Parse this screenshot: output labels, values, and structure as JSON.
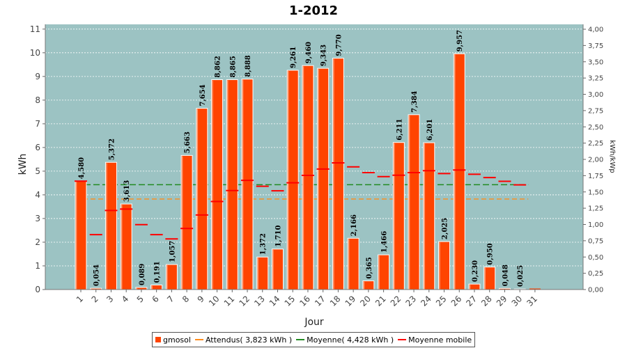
{
  "chart_data": {
    "type": "bar",
    "title": "1-2012",
    "xlabel": "Jour",
    "ylabel": "kWh",
    "y2label": "kWh/kWp",
    "ylim": [
      0,
      11.2
    ],
    "yticks": [
      "0",
      "1",
      "2",
      "3",
      "4",
      "5",
      "6",
      "7",
      "8",
      "9",
      "10",
      "11"
    ],
    "y2ticks": [
      "0,00",
      "0,25",
      "0,50",
      "0,75",
      "1,00",
      "1,25",
      "1,50",
      "1,75",
      "2,00",
      "2,25",
      "2,50",
      "2,75",
      "3,00",
      "3,25",
      "3,50",
      "3,75",
      "4,00"
    ],
    "grid": true,
    "legend_position": "bottom",
    "categories": [
      "1",
      "2",
      "3",
      "4",
      "5",
      "6",
      "7",
      "8",
      "9",
      "10",
      "11",
      "12",
      "13",
      "14",
      "15",
      "16",
      "17",
      "18",
      "19",
      "20",
      "21",
      "22",
      "23",
      "24",
      "25",
      "26",
      "27",
      "28",
      "29",
      "30",
      "31"
    ],
    "series": [
      {
        "name": "gmosol",
        "type": "bar",
        "color": "#ff4400",
        "values": [
          4.58,
          0.054,
          5.372,
          3.613,
          0.089,
          0.191,
          1.057,
          5.663,
          7.654,
          8.862,
          8.865,
          8.888,
          1.372,
          1.71,
          9.261,
          9.46,
          9.343,
          9.77,
          2.166,
          0.365,
          1.466,
          6.211,
          7.384,
          6.201,
          2.025,
          9.957,
          0.23,
          0.95,
          0.048,
          0.025,
          0.0
        ],
        "labels": [
          "4,580",
          "0,054",
          "5,372",
          "3,613",
          "0,089",
          "0,191",
          "1,057",
          "5,663",
          "7,654",
          "8,862",
          "8,865",
          "8,888",
          "1,372",
          "1,710",
          "9,261",
          "9,460",
          "9,343",
          "9,770",
          "2,166",
          "0,365",
          "1,466",
          "6,211",
          "7,384",
          "6,201",
          "2,025",
          "9,957",
          "0,230",
          "0,950",
          "0,048",
          "0,025",
          ""
        ]
      },
      {
        "name": "Attendus( 3,823 kWh )",
        "type": "line",
        "style": "dashed",
        "color": "#ff8c1a",
        "value": 3.823
      },
      {
        "name": "Moyenne( 4,428 kWh )",
        "type": "line",
        "style": "dashed",
        "color": "#228b22",
        "value": 4.428
      },
      {
        "name": "Moyenne mobile",
        "type": "marker",
        "color": "#ff0000",
        "values": [
          4.58,
          2.32,
          3.34,
          3.4,
          2.74,
          2.32,
          2.14,
          2.58,
          3.15,
          3.72,
          4.18,
          4.61,
          4.36,
          4.17,
          4.51,
          4.82,
          5.09,
          5.35,
          5.18,
          4.94,
          4.77,
          4.83,
          4.94,
          5.02,
          4.9,
          5.05,
          4.87,
          4.73,
          4.57,
          4.42,
          null
        ]
      }
    ]
  }
}
